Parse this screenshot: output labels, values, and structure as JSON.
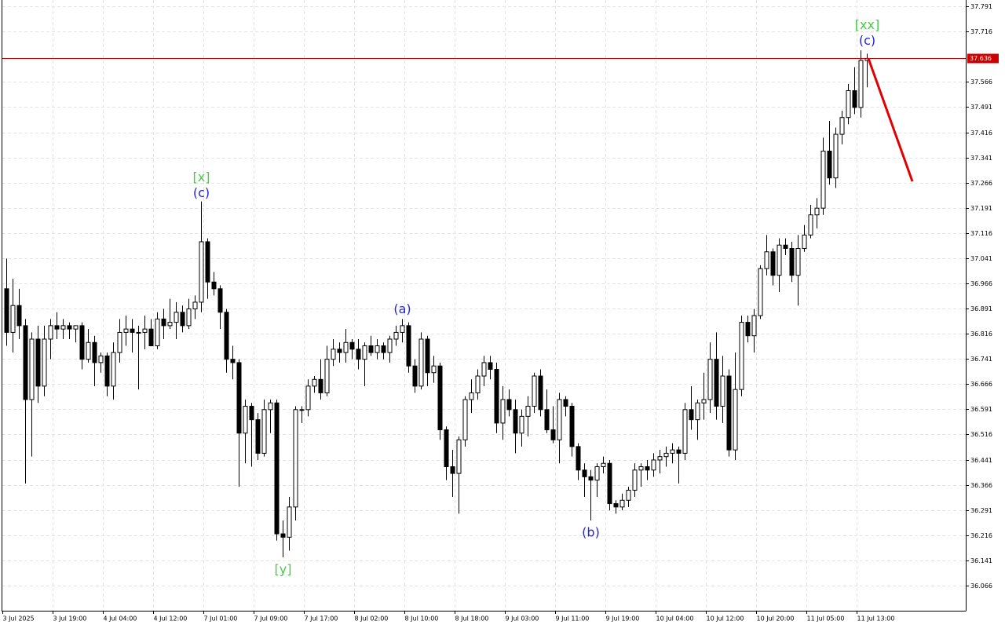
{
  "chart_data": {
    "type": "candlestick",
    "ylim": [
      35.991,
      37.81
    ],
    "yticks": [
      37.791,
      37.716,
      37.566,
      37.491,
      37.416,
      37.341,
      37.266,
      37.191,
      37.116,
      37.041,
      36.966,
      36.891,
      36.816,
      36.741,
      36.666,
      36.591,
      36.516,
      36.441,
      36.366,
      36.291,
      36.216,
      36.141,
      36.066
    ],
    "grid": true,
    "up_color": "#ffffff",
    "down_color": "#000000",
    "outline_color": "#000000",
    "price_line": 37.636,
    "price_line_color": "#cc0000",
    "forecast_target": 37.27,
    "forecast_color": "#e00000",
    "annotations": [
      {
        "text": "[x]",
        "color": "#44cc44"
      },
      {
        "text": "(c)",
        "color": "#2222dd"
      },
      {
        "text": "[y]",
        "color": "#44cc44"
      },
      {
        "text": "(a)",
        "color": "#2222dd"
      },
      {
        "text": "(b)",
        "color": "#2222dd"
      },
      {
        "text": "[xx]",
        "color": "#44cc44"
      },
      {
        "text": "(c)",
        "color": "#2222dd"
      }
    ],
    "categories": [
      "3 Jul 2025",
      null,
      null,
      null,
      null,
      null,
      null,
      null,
      "3 Jul 19:00",
      null,
      null,
      null,
      null,
      null,
      null,
      null,
      "4 Jul 04:00",
      null,
      null,
      null,
      null,
      null,
      null,
      null,
      "4 Jul 12:00",
      null,
      null,
      null,
      null,
      null,
      null,
      null,
      "7 Jul 01:00",
      null,
      null,
      null,
      null,
      null,
      null,
      null,
      "7 Jul 09:00",
      null,
      null,
      null,
      null,
      null,
      null,
      null,
      "7 Jul 17:00",
      null,
      null,
      null,
      null,
      null,
      null,
      null,
      "8 Jul 02:00",
      null,
      null,
      null,
      null,
      null,
      null,
      null,
      "8 Jul 10:00",
      null,
      null,
      null,
      null,
      null,
      null,
      null,
      "8 Jul 18:00",
      null,
      null,
      null,
      null,
      null,
      null,
      null,
      "9 Jul 03:00",
      null,
      null,
      null,
      null,
      null,
      null,
      null,
      "9 Jul 11:00",
      null,
      null,
      null,
      null,
      null,
      null,
      null,
      "9 Jul 19:00",
      null,
      null,
      null,
      null,
      null,
      null,
      null,
      "10 Jul 04:00",
      null,
      null,
      null,
      null,
      null,
      null,
      null,
      "10 Jul 12:00",
      null,
      null,
      null,
      null,
      null,
      null,
      null,
      "10 Jul 20:00",
      null,
      null,
      null,
      null,
      null,
      null,
      null,
      "11 Jul 05:00",
      null,
      null,
      null,
      null,
      null,
      null,
      null,
      "11 Jul 13:00",
      null
    ],
    "candles": [
      [
        36.95,
        37.04,
        36.78,
        36.82
      ],
      [
        36.82,
        36.98,
        36.76,
        36.9
      ],
      [
        36.9,
        36.95,
        36.8,
        36.84
      ],
      [
        36.84,
        36.86,
        36.37,
        36.62
      ],
      [
        36.62,
        36.82,
        36.45,
        36.8
      ],
      [
        36.8,
        36.84,
        36.61,
        36.66
      ],
      [
        36.66,
        36.84,
        36.63,
        36.8
      ],
      [
        36.8,
        36.86,
        36.74,
        36.84
      ],
      [
        36.84,
        36.88,
        36.8,
        36.83
      ],
      [
        36.83,
        36.86,
        36.8,
        36.84
      ],
      [
        36.84,
        36.85,
        36.8,
        36.83
      ],
      [
        36.83,
        36.84,
        36.79,
        36.84
      ],
      [
        36.84,
        36.85,
        36.71,
        36.74
      ],
      [
        36.74,
        36.83,
        36.73,
        36.79
      ],
      [
        36.79,
        36.81,
        36.66,
        36.73
      ],
      [
        36.73,
        36.76,
        36.7,
        36.75
      ],
      [
        36.75,
        36.76,
        36.63,
        36.66
      ],
      [
        36.66,
        36.79,
        36.62,
        36.76
      ],
      [
        36.76,
        36.86,
        36.73,
        36.82
      ],
      [
        36.82,
        36.87,
        36.78,
        36.83
      ],
      [
        36.83,
        36.86,
        36.76,
        36.82
      ],
      [
        36.82,
        36.84,
        36.65,
        36.82
      ],
      [
        36.82,
        36.87,
        36.77,
        36.83
      ],
      [
        36.83,
        36.86,
        36.78,
        36.78
      ],
      [
        36.78,
        36.88,
        36.77,
        36.86
      ],
      [
        36.86,
        36.89,
        36.8,
        36.84
      ],
      [
        36.84,
        36.92,
        36.83,
        36.85
      ],
      [
        36.85,
        36.91,
        36.8,
        36.88
      ],
      [
        36.88,
        36.9,
        36.82,
        36.84
      ],
      [
        36.84,
        36.92,
        36.83,
        36.89
      ],
      [
        36.89,
        36.93,
        36.86,
        36.91
      ],
      [
        36.91,
        37.21,
        36.88,
        37.09
      ],
      [
        37.09,
        37.1,
        36.92,
        36.97
      ],
      [
        36.97,
        37.0,
        36.93,
        36.95
      ],
      [
        36.95,
        36.96,
        36.83,
        36.88
      ],
      [
        36.88,
        36.89,
        36.7,
        36.74
      ],
      [
        36.74,
        36.78,
        36.68,
        36.73
      ],
      [
        36.73,
        36.74,
        36.36,
        36.52
      ],
      [
        36.52,
        36.62,
        36.43,
        36.6
      ],
      [
        36.6,
        36.61,
        36.42,
        36.56
      ],
      [
        36.56,
        36.58,
        36.44,
        36.46
      ],
      [
        36.46,
        36.62,
        36.45,
        36.59
      ],
      [
        36.59,
        36.62,
        36.52,
        36.61
      ],
      [
        36.61,
        36.62,
        36.2,
        36.22
      ],
      [
        36.22,
        36.26,
        36.15,
        36.21
      ],
      [
        36.21,
        36.33,
        36.17,
        36.3
      ],
      [
        36.3,
        36.6,
        36.26,
        36.59
      ],
      [
        36.59,
        36.6,
        36.55,
        36.59
      ],
      [
        36.59,
        36.68,
        36.57,
        36.66
      ],
      [
        36.66,
        36.69,
        36.64,
        36.68
      ],
      [
        36.68,
        36.74,
        36.62,
        36.64
      ],
      [
        36.64,
        36.78,
        36.63,
        36.74
      ],
      [
        36.74,
        36.8,
        36.72,
        36.77
      ],
      [
        36.77,
        36.79,
        36.73,
        36.76
      ],
      [
        36.76,
        36.83,
        36.73,
        36.79
      ],
      [
        36.79,
        36.8,
        36.74,
        36.77
      ],
      [
        36.77,
        36.8,
        36.71,
        36.74
      ],
      [
        36.74,
        36.79,
        36.66,
        36.78
      ],
      [
        36.78,
        36.81,
        36.75,
        36.76
      ],
      [
        36.76,
        36.8,
        36.74,
        36.78
      ],
      [
        36.78,
        36.79,
        36.74,
        36.76
      ],
      [
        36.76,
        36.81,
        36.73,
        36.8
      ],
      [
        36.8,
        36.84,
        36.78,
        36.82
      ],
      [
        36.82,
        36.86,
        36.79,
        36.84
      ],
      [
        36.84,
        36.85,
        36.7,
        36.72
      ],
      [
        36.72,
        36.74,
        36.64,
        36.66
      ],
      [
        36.66,
        36.82,
        36.65,
        36.8
      ],
      [
        36.8,
        36.81,
        36.66,
        36.7
      ],
      [
        36.7,
        36.75,
        36.67,
        36.72
      ],
      [
        36.72,
        36.73,
        36.5,
        36.53
      ],
      [
        36.53,
        36.54,
        36.38,
        36.42
      ],
      [
        36.42,
        36.47,
        36.33,
        36.4
      ],
      [
        36.4,
        36.51,
        36.28,
        36.5
      ],
      [
        36.5,
        36.63,
        36.48,
        36.62
      ],
      [
        36.62,
        36.68,
        36.58,
        36.64
      ],
      [
        36.64,
        36.71,
        36.62,
        36.69
      ],
      [
        36.69,
        36.75,
        36.66,
        36.73
      ],
      [
        36.73,
        36.75,
        36.68,
        36.71
      ],
      [
        36.71,
        36.73,
        36.52,
        36.55
      ],
      [
        36.55,
        36.66,
        36.5,
        36.62
      ],
      [
        36.62,
        36.65,
        36.57,
        36.59
      ],
      [
        36.59,
        36.62,
        36.46,
        36.52
      ],
      [
        36.52,
        36.59,
        36.48,
        36.57
      ],
      [
        36.57,
        36.63,
        36.51,
        36.6
      ],
      [
        36.6,
        36.7,
        36.58,
        36.69
      ],
      [
        36.69,
        36.71,
        36.57,
        36.59
      ],
      [
        36.59,
        36.65,
        36.52,
        36.53
      ],
      [
        36.53,
        36.6,
        36.49,
        36.5
      ],
      [
        36.5,
        36.64,
        36.43,
        36.62
      ],
      [
        36.62,
        36.63,
        36.57,
        36.6
      ],
      [
        36.6,
        36.61,
        36.45,
        36.48
      ],
      [
        36.48,
        36.49,
        36.38,
        36.41
      ],
      [
        36.41,
        36.43,
        36.33,
        36.39
      ],
      [
        36.39,
        36.41,
        36.26,
        36.38
      ],
      [
        36.38,
        36.43,
        36.33,
        36.42
      ],
      [
        36.42,
        36.45,
        36.4,
        36.43
      ],
      [
        36.43,
        36.44,
        36.29,
        36.31
      ],
      [
        36.31,
        36.32,
        36.28,
        36.3
      ],
      [
        36.3,
        36.34,
        36.29,
        36.32
      ],
      [
        36.32,
        36.36,
        36.3,
        36.35
      ],
      [
        36.35,
        36.43,
        36.33,
        36.41
      ],
      [
        36.41,
        36.43,
        36.36,
        36.42
      ],
      [
        36.42,
        36.44,
        36.38,
        36.41
      ],
      [
        36.41,
        36.46,
        36.39,
        36.44
      ],
      [
        36.44,
        36.47,
        36.4,
        36.45
      ],
      [
        36.45,
        36.48,
        36.42,
        36.46
      ],
      [
        36.46,
        36.49,
        36.43,
        36.47
      ],
      [
        36.47,
        36.48,
        36.37,
        36.46
      ],
      [
        36.46,
        36.61,
        36.44,
        36.59
      ],
      [
        36.59,
        36.66,
        36.53,
        36.56
      ],
      [
        36.56,
        36.62,
        36.5,
        36.61
      ],
      [
        36.61,
        36.7,
        36.56,
        36.62
      ],
      [
        36.62,
        36.79,
        36.58,
        36.74
      ],
      [
        36.74,
        36.82,
        36.56,
        36.6
      ],
      [
        36.6,
        36.75,
        36.55,
        36.69
      ],
      [
        36.69,
        36.71,
        36.45,
        36.47
      ],
      [
        36.47,
        36.76,
        36.44,
        36.65
      ],
      [
        36.65,
        36.87,
        36.63,
        36.85
      ],
      [
        36.85,
        36.87,
        36.79,
        36.81
      ],
      [
        36.81,
        36.89,
        36.76,
        36.87
      ],
      [
        36.87,
        37.02,
        36.86,
        37.01
      ],
      [
        37.01,
        37.11,
        36.99,
        37.06
      ],
      [
        37.06,
        37.07,
        36.96,
        36.99
      ],
      [
        36.99,
        37.1,
        36.94,
        37.08
      ],
      [
        37.08,
        37.1,
        37.05,
        37.07
      ],
      [
        37.07,
        37.09,
        36.97,
        36.99
      ],
      [
        36.99,
        37.11,
        36.9,
        37.07
      ],
      [
        37.07,
        37.14,
        37.06,
        37.11
      ],
      [
        37.11,
        37.2,
        37.1,
        37.17
      ],
      [
        37.17,
        37.22,
        37.13,
        37.19
      ],
      [
        37.19,
        37.4,
        37.17,
        37.36
      ],
      [
        37.36,
        37.45,
        37.26,
        37.28
      ],
      [
        37.28,
        37.43,
        37.25,
        37.41
      ],
      [
        37.41,
        37.48,
        37.38,
        37.46
      ],
      [
        37.46,
        37.56,
        37.44,
        37.54
      ],
      [
        37.54,
        37.61,
        37.47,
        37.49
      ],
      [
        37.49,
        37.66,
        37.46,
        37.63
      ],
      [
        37.63,
        37.65,
        37.55,
        37.636
      ]
    ]
  }
}
